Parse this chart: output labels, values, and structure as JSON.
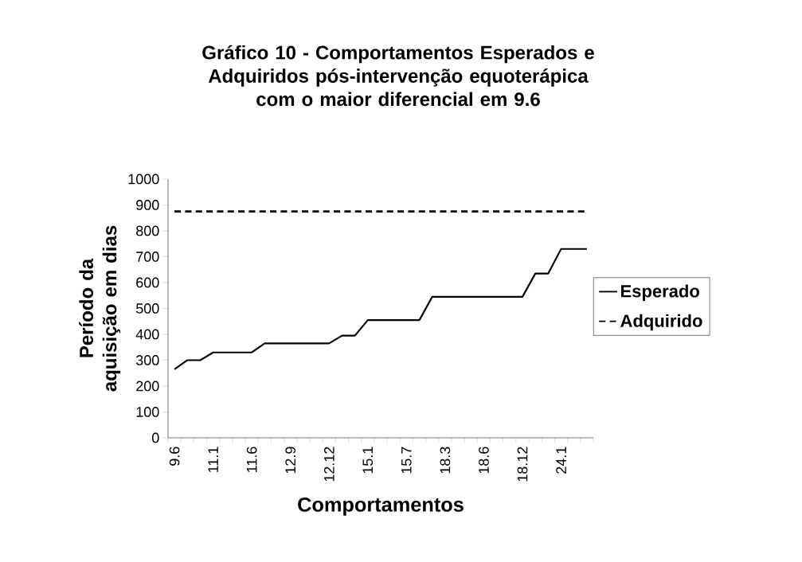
{
  "chart_data": {
    "type": "line",
    "title": "Gráfico 10 - Comportamentos Esperados e Adquiridos pós-intervenção equoterápica com o maior diferencial em 9.6",
    "xlabel": "Comportamentos",
    "ylabel": "Período da aquisição em dias",
    "categories": [
      "9.6",
      null,
      null,
      "11.1",
      null,
      null,
      "11.6",
      null,
      null,
      "12.9",
      null,
      null,
      "12.12",
      null,
      null,
      "15.1",
      null,
      null,
      "15.7",
      null,
      null,
      "18.3",
      null,
      null,
      "18.6",
      null,
      null,
      "18.12",
      null,
      null,
      "24.1",
      null,
      null
    ],
    "ylim": [
      0,
      1000
    ],
    "yticks": [
      0,
      100,
      200,
      300,
      400,
      500,
      600,
      700,
      800,
      900,
      1000
    ],
    "legend": "right",
    "series": [
      {
        "name": "Esperado",
        "color": "#000000",
        "line_style": "solid",
        "values": [
          265,
          300,
          300,
          330,
          330,
          330,
          330,
          365,
          365,
          365,
          365,
          365,
          365,
          395,
          395,
          455,
          455,
          455,
          455,
          455,
          545,
          545,
          545,
          545,
          545,
          545,
          545,
          545,
          635,
          635,
          730,
          730,
          730
        ]
      },
      {
        "name": "Adquirido",
        "color": "#000000",
        "line_style": "dashed",
        "values": [
          875,
          875,
          875,
          875,
          875,
          875,
          875,
          875,
          875,
          875,
          875,
          875,
          875,
          875,
          875,
          875,
          875,
          875,
          875,
          875,
          875,
          875,
          875,
          875,
          875,
          875,
          875,
          875,
          875,
          875,
          875,
          875,
          875
        ]
      }
    ]
  }
}
